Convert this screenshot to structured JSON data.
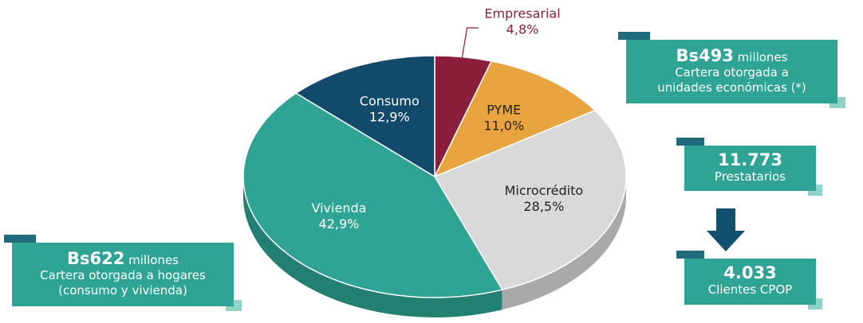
{
  "chart_data": {
    "type": "pie",
    "categories": [
      "Empresarial",
      "PYME",
      "Microcrédito",
      "Vivienda",
      "Consumo"
    ],
    "values": [
      4.8,
      11.0,
      28.5,
      42.9,
      12.9
    ],
    "value_labels": [
      "4,8%",
      "11,0%",
      "28,5%",
      "42,9%",
      "12,9%"
    ],
    "colors": [
      "#8b1e3a",
      "#e8a43f",
      "#d9d9d9",
      "#2fa394",
      "#114a6b"
    ]
  },
  "callouts": [
    {
      "amount": "Bs493",
      "unit": "millones",
      "lines": [
        "Cartera otorgada a",
        "unidades económicas (*)"
      ]
    },
    {
      "amount": "Bs622",
      "unit": "millones",
      "lines": [
        "Cartera otorgada a hogares",
        "(consumo y vivienda)"
      ]
    }
  ],
  "flow": [
    {
      "amount": "11.773",
      "label": "Prestatarios"
    },
    {
      "amount": "4.033",
      "label": "Clientes CPOP"
    }
  ]
}
